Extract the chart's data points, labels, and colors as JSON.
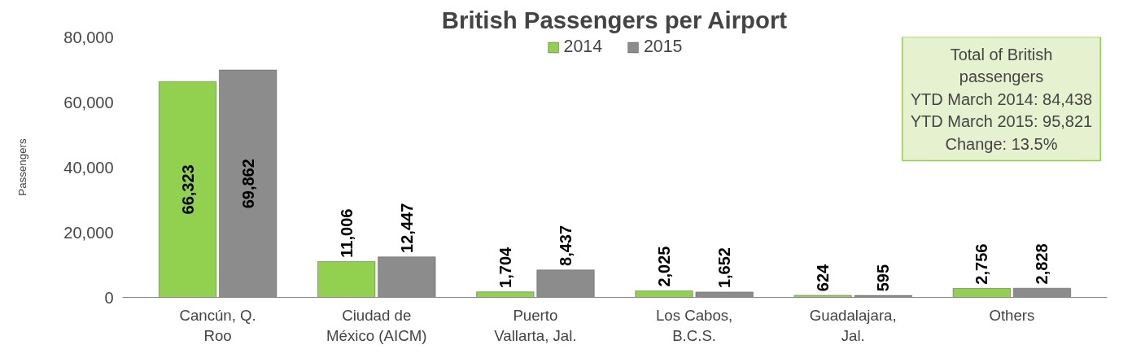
{
  "chart_data": {
    "type": "bar",
    "title": "British Passengers per Airport",
    "ylabel": "Passengers",
    "categories": [
      "Cancún, Q. Roo",
      "Ciudad de México (AICM)",
      "Puerto Vallarta, Jal.",
      "Los Cabos, B.C.S.",
      "Guadalajara, Jal.",
      "Others"
    ],
    "series": [
      {
        "name": "2014",
        "color": "#92d050",
        "values": [
          66323,
          11006,
          1704,
          2025,
          624,
          2756
        ],
        "value_labels": [
          "66,323",
          "11,006",
          "1,704",
          "2,025",
          "624",
          "2,756"
        ]
      },
      {
        "name": "2015",
        "color": "#8c8c8c",
        "values": [
          69862,
          12447,
          8437,
          1652,
          595,
          2828
        ],
        "value_labels": [
          "69,862",
          "12,447",
          "8,437",
          "1,652",
          "595",
          "2,828"
        ]
      }
    ],
    "ylim": [
      0,
      80000
    ],
    "yticks": [
      {
        "value": 0,
        "label": "0"
      },
      {
        "value": 20000,
        "label": "20,000"
      },
      {
        "value": 40000,
        "label": "40,000"
      },
      {
        "value": 60000,
        "label": "60,000"
      },
      {
        "value": 80000,
        "label": "80,000"
      }
    ],
    "grid": false,
    "legend": "top",
    "annotations": [
      "Total of British",
      "passengers",
      "YTD March 2014: 84,438",
      "YTD March 2015: 95,821",
      "Change: 13.5%"
    ]
  }
}
